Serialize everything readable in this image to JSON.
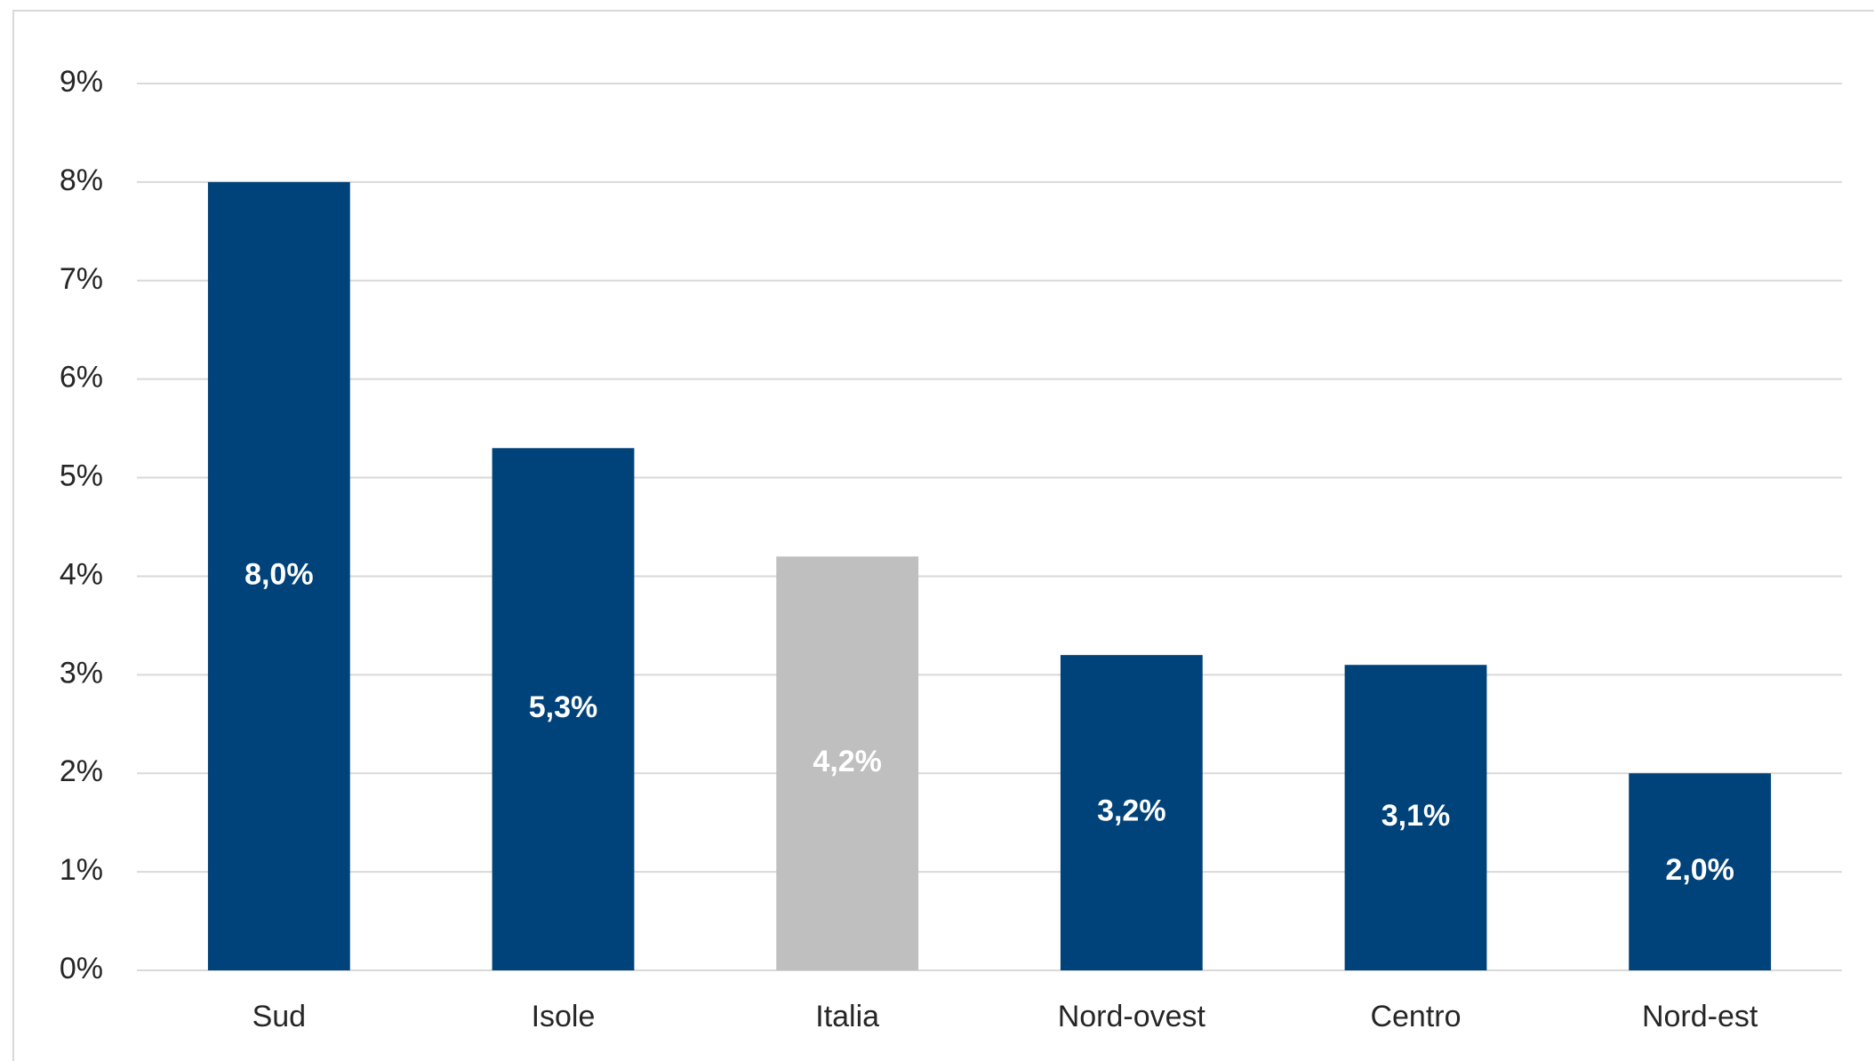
{
  "chart_data": {
    "type": "bar",
    "categories": [
      "Sud",
      "Isole",
      "Italia",
      "Nord-ovest",
      "Centro",
      "Nord-est"
    ],
    "values": [
      8.0,
      5.3,
      4.2,
      3.2,
      3.1,
      2.0
    ],
    "data_labels": [
      "8,0%",
      "5,3%",
      "4,2%",
      "3,2%",
      "3,1%",
      "2,0%"
    ],
    "ylim": [
      0,
      9
    ],
    "yticks": [
      0,
      1,
      2,
      3,
      4,
      5,
      6,
      7,
      8,
      9
    ],
    "ytick_labels": [
      "0%",
      "1%",
      "2%",
      "3%",
      "4%",
      "5%",
      "6%",
      "7%",
      "8%",
      "9%"
    ],
    "grid": true,
    "legend": "none",
    "colors": {
      "default": "#00427a",
      "highlight": "#bfbfbf",
      "highlight_category": "Italia"
    }
  }
}
